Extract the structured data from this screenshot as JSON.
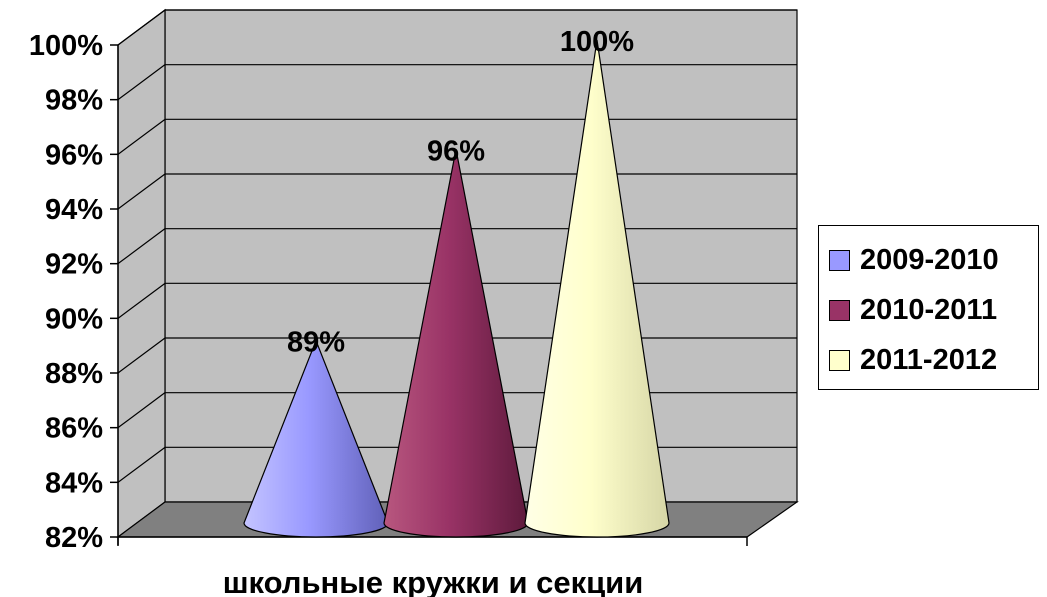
{
  "chart_data": {
    "type": "bar",
    "shape": "cone-3d",
    "categories": [
      "школьные кружки и секции"
    ],
    "xlabel": "школьные кружки и секции",
    "ylabel": "",
    "title": "",
    "ylim": [
      82,
      100
    ],
    "yticks": [
      "82%",
      "84%",
      "86%",
      "88%",
      "90%",
      "92%",
      "94%",
      "96%",
      "98%",
      "100%"
    ],
    "grid": true,
    "legend_position": "right",
    "series": [
      {
        "name": "2009-2010",
        "values": [
          89
        ],
        "label": "89%",
        "color": "#9999FF"
      },
      {
        "name": "2010-2011",
        "values": [
          96
        ],
        "label": "96%",
        "color": "#993366"
      },
      {
        "name": "2011-2012",
        "values": [
          100
        ],
        "label": "100%",
        "color": "#FFFFCC"
      }
    ]
  }
}
